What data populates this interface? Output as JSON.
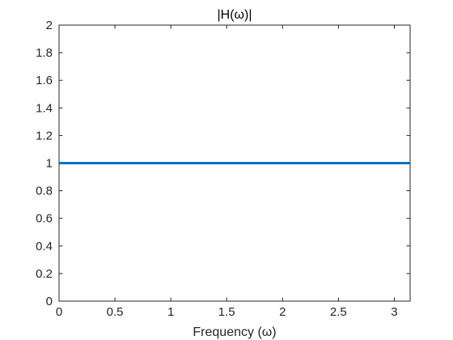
{
  "chart_data": {
    "type": "line",
    "title": "|H(ω)|",
    "xlabel": "Frequency (ω)",
    "ylabel": "",
    "xlim": [
      0,
      3.14159
    ],
    "ylim": [
      0,
      2
    ],
    "x_ticks": [
      0,
      0.5,
      1,
      1.5,
      2,
      2.5,
      3
    ],
    "x_tick_labels": [
      "0",
      "0.5",
      "1",
      "1.5",
      "2",
      "2.5",
      "3"
    ],
    "y_ticks": [
      0,
      0.2,
      0.4,
      0.6,
      0.8,
      1,
      1.2,
      1.4,
      1.6,
      1.8,
      2
    ],
    "y_tick_labels": [
      "0",
      "0.2",
      "0.4",
      "0.6",
      "0.8",
      "1",
      "1.2",
      "1.4",
      "1.6",
      "1.8",
      "2"
    ],
    "grid": false,
    "series": [
      {
        "x": [
          0,
          3.14159
        ],
        "y": [
          1,
          1
        ],
        "color": "#0072BD"
      }
    ]
  }
}
